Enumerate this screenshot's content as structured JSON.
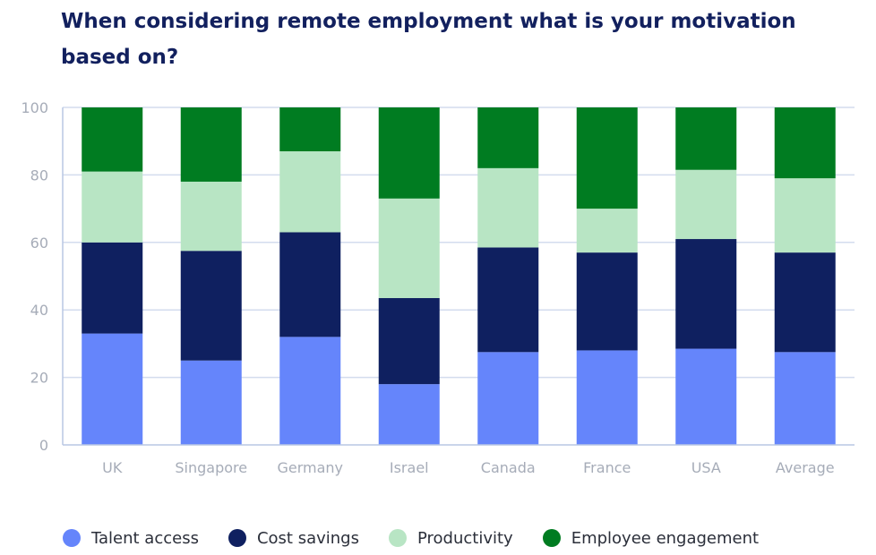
{
  "chart_data": {
    "type": "bar",
    "stacked": true,
    "title": "When considering remote employment what is your motivation based on?",
    "categories": [
      "UK",
      "Singapore",
      "Germany",
      "Israel",
      "Canada",
      "France",
      "USA",
      "Average"
    ],
    "ylim": [
      0,
      100
    ],
    "yticks": [
      0,
      20,
      40,
      60,
      80,
      100
    ],
    "grid": true,
    "legend_position": "bottom-left",
    "series": [
      {
        "name": "Talent access",
        "color": "#6585fb",
        "values": [
          33,
          25,
          32,
          18,
          27.5,
          28,
          28.5,
          27.5
        ]
      },
      {
        "name": "Cost savings",
        "color": "#0f2060",
        "values": [
          27,
          32.5,
          31,
          25.5,
          31,
          29,
          32.5,
          29.5
        ]
      },
      {
        "name": "Productivity",
        "color": "#b8e5c4",
        "values": [
          21,
          20.5,
          24,
          29.5,
          23.5,
          13,
          20.5,
          22
        ]
      },
      {
        "name": "Employee engagement",
        "color": "#007c21",
        "values": [
          19,
          22,
          13,
          27,
          18,
          30,
          18.5,
          21
        ]
      }
    ]
  },
  "colors": {
    "grid": "#d3dcee",
    "axis": "#b9c7e3",
    "tick_text": "#a6acb8",
    "title": "#12205e"
  }
}
